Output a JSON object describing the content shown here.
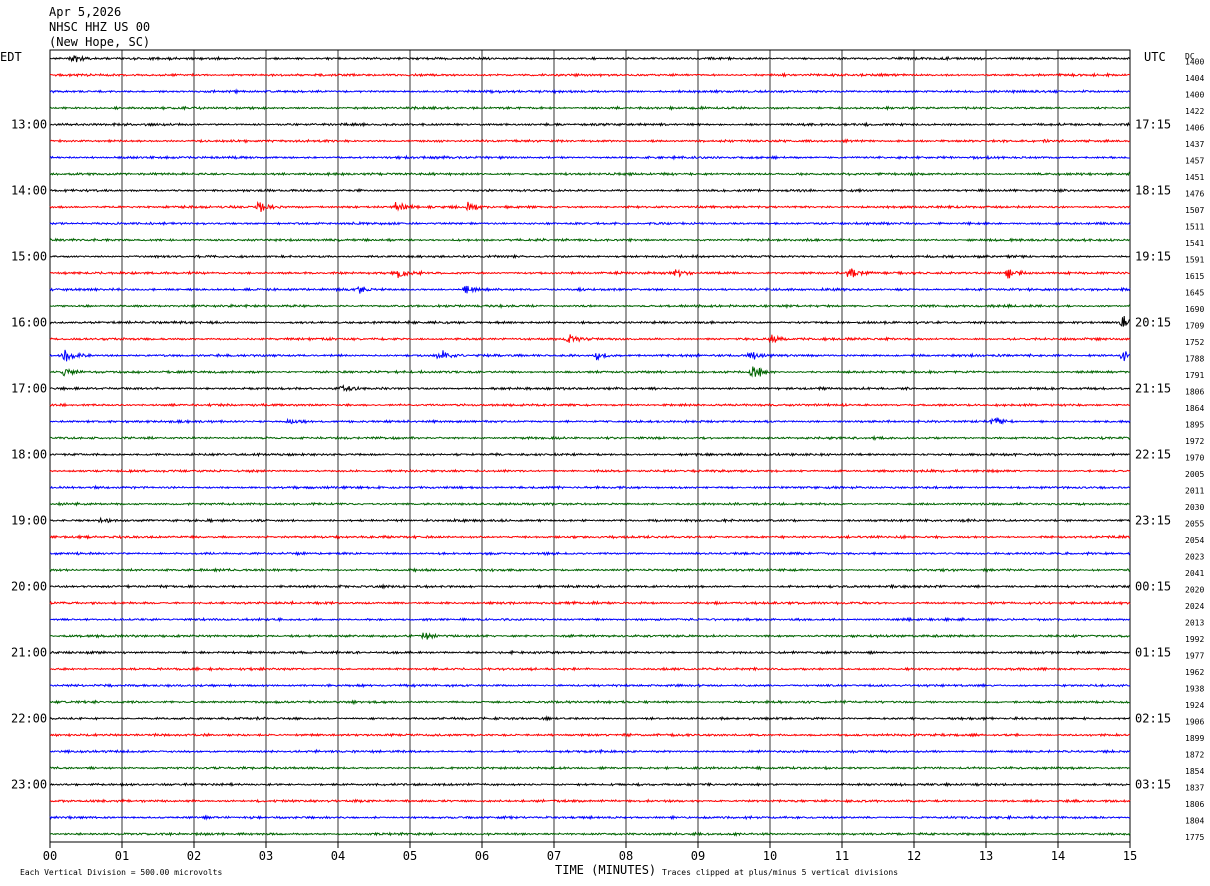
{
  "header": {
    "date": "Apr 5,2026",
    "station": "NHSC HHZ US 00",
    "location": "(New Hope, SC)"
  },
  "left_axis_label": "EDT",
  "right_axis_label": "UTC",
  "dc_label": "DC",
  "footer": {
    "xlabel": "TIME (MINUTES)",
    "scale_note": "Each Vertical Division =  500.00 microvolts",
    "clip_note": "Traces clipped at plus/minus 5 vertical divisions"
  },
  "colors": {
    "trace_cycle": [
      "#000000",
      "#ff0000",
      "#0000ff",
      "#006400"
    ],
    "grid": "#000000"
  },
  "chart_data": {
    "type": "line",
    "subtype": "helicorder",
    "x_ticks": [
      "00",
      "01",
      "02",
      "03",
      "04",
      "05",
      "06",
      "07",
      "08",
      "09",
      "10",
      "11",
      "12",
      "13",
      "14",
      "15"
    ],
    "x_range": [
      0,
      15
    ],
    "row_count": 48,
    "left_time_labels": [
      {
        "row": 4,
        "label": "13:00"
      },
      {
        "row": 8,
        "label": "14:00"
      },
      {
        "row": 12,
        "label": "15:00"
      },
      {
        "row": 16,
        "label": "16:00"
      },
      {
        "row": 20,
        "label": "17:00"
      },
      {
        "row": 24,
        "label": "18:00"
      },
      {
        "row": 28,
        "label": "19:00"
      },
      {
        "row": 32,
        "label": "20:00"
      },
      {
        "row": 36,
        "label": "21:00"
      },
      {
        "row": 40,
        "label": "22:00"
      },
      {
        "row": 44,
        "label": "23:00"
      }
    ],
    "right_time_labels": [
      {
        "row": 4,
        "label": "17:15"
      },
      {
        "row": 8,
        "label": "18:15"
      },
      {
        "row": 12,
        "label": "19:15"
      },
      {
        "row": 16,
        "label": "20:15"
      },
      {
        "row": 20,
        "label": "21:15"
      },
      {
        "row": 24,
        "label": "22:15"
      },
      {
        "row": 28,
        "label": "23:15"
      },
      {
        "row": 32,
        "label": "00:15"
      },
      {
        "row": 36,
        "label": "01:15"
      },
      {
        "row": 40,
        "label": "02:15"
      },
      {
        "row": 44,
        "label": "03:15"
      }
    ],
    "dc_offsets": [
      1400,
      1404,
      1400,
      1422,
      1406,
      1437,
      1457,
      1451,
      1476,
      1507,
      1511,
      1541,
      1591,
      1615,
      1645,
      1690,
      1709,
      1752,
      1788,
      1791,
      1806,
      1864,
      1895,
      1972,
      1970,
      2005,
      2011,
      2030,
      2055,
      2054,
      2023,
      2041,
      2020,
      2024,
      2013,
      1992,
      1977,
      1962,
      1938,
      1924,
      1906,
      1899,
      1872,
      1854,
      1837,
      1806,
      1804,
      1775
    ],
    "events": [
      {
        "row": 0,
        "minute": 0.3,
        "amp": 1.3
      },
      {
        "row": 9,
        "minute": 2.9,
        "amp": 1.6
      },
      {
        "row": 9,
        "minute": 4.8,
        "amp": 1.6
      },
      {
        "row": 9,
        "minute": 5.8,
        "amp": 1.2
      },
      {
        "row": 13,
        "minute": 4.85,
        "amp": 1.8
      },
      {
        "row": 13,
        "minute": 8.7,
        "amp": 0.9
      },
      {
        "row": 13,
        "minute": 11.1,
        "amp": 1.8
      },
      {
        "row": 13,
        "minute": 13.3,
        "amp": 1.6
      },
      {
        "row": 14,
        "minute": 4.3,
        "amp": 1.1
      },
      {
        "row": 14,
        "minute": 5.75,
        "amp": 1.2
      },
      {
        "row": 16,
        "minute": 14.9,
        "amp": 2.0
      },
      {
        "row": 17,
        "minute": 7.2,
        "amp": 1.3
      },
      {
        "row": 17,
        "minute": 10.0,
        "amp": 1.2
      },
      {
        "row": 18,
        "minute": 0.2,
        "amp": 2.0
      },
      {
        "row": 18,
        "minute": 5.4,
        "amp": 2.0
      },
      {
        "row": 18,
        "minute": 7.6,
        "amp": 1.2
      },
      {
        "row": 18,
        "minute": 9.7,
        "amp": 1.4
      },
      {
        "row": 18,
        "minute": 14.9,
        "amp": 1.8
      },
      {
        "row": 19,
        "minute": 0.2,
        "amp": 1.4
      },
      {
        "row": 19,
        "minute": 9.75,
        "amp": 2.2
      },
      {
        "row": 20,
        "minute": 4.05,
        "amp": 1.0
      },
      {
        "row": 22,
        "minute": 3.3,
        "amp": 1.6
      },
      {
        "row": 22,
        "minute": 13.1,
        "amp": 1.4
      },
      {
        "row": 28,
        "minute": 0.7,
        "amp": 1.0
      },
      {
        "row": 35,
        "minute": 5.2,
        "amp": 1.0
      }
    ]
  }
}
